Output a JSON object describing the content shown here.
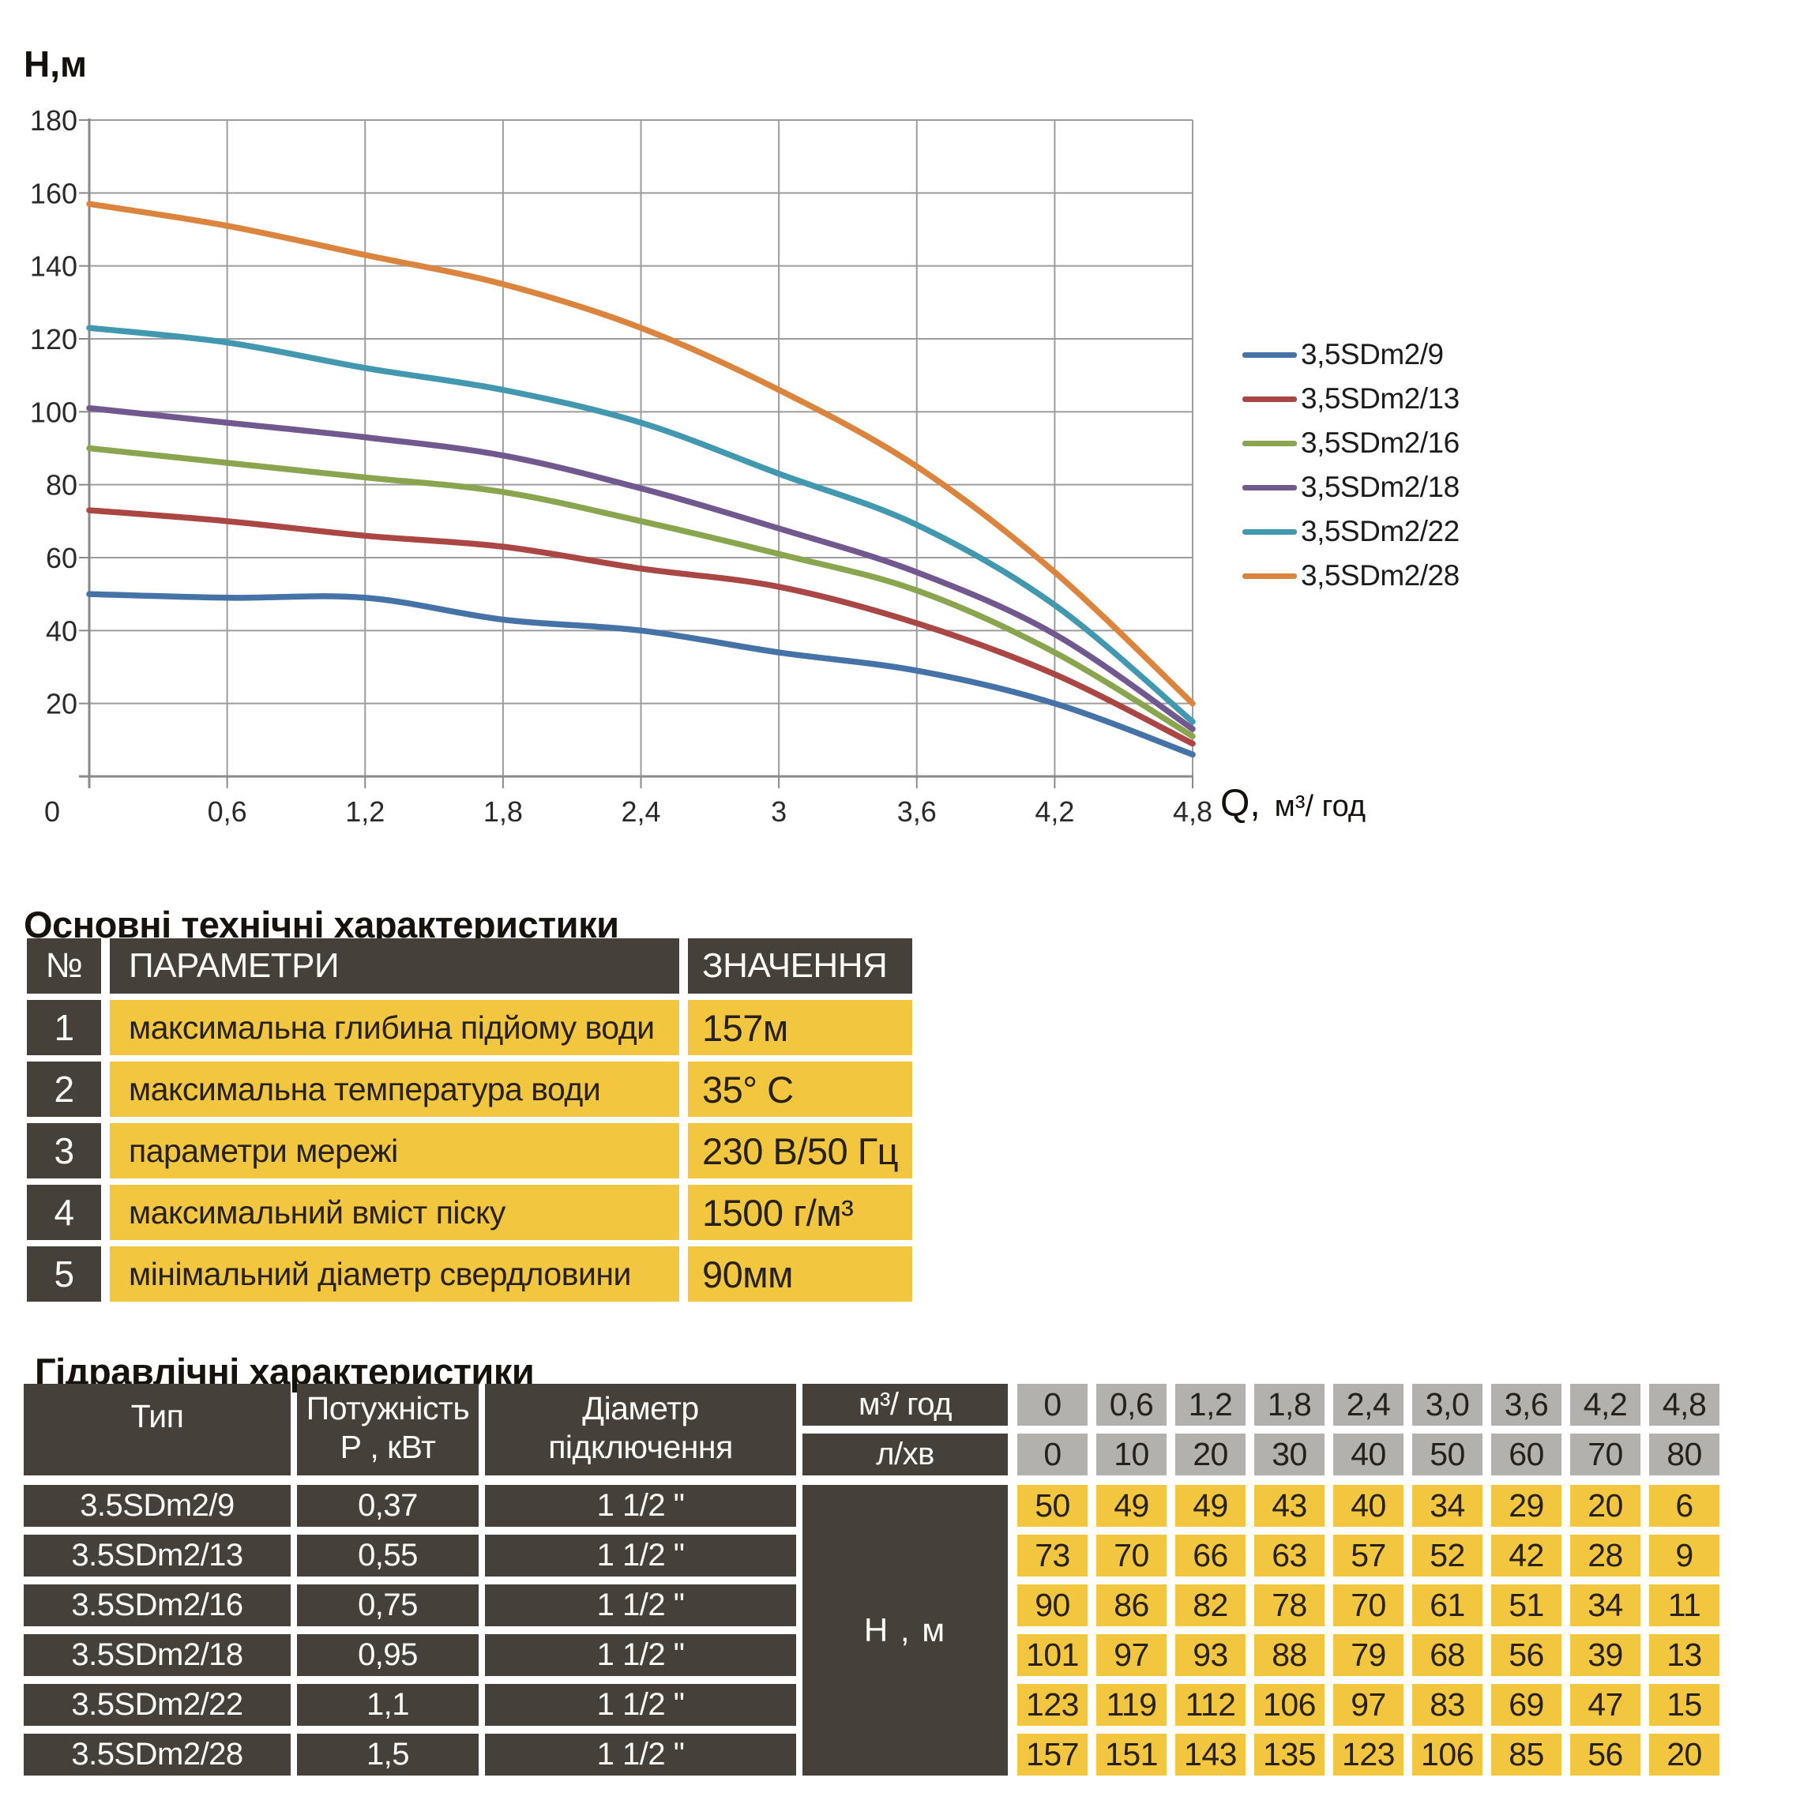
{
  "chart": {
    "y_axis_title": "Н,м",
    "x_axis_title_q": "Q,",
    "x_axis_title_unit": "м³/ год"
  },
  "chart_data": {
    "type": "line",
    "title": "",
    "xlabel": "Q, м³/год",
    "ylabel": "Н, м",
    "xlim": [
      0,
      4.8
    ],
    "ylim": [
      0,
      180
    ],
    "grid": true,
    "legend_position": "right",
    "x": [
      0,
      0.6,
      1.2,
      1.8,
      2.4,
      3.0,
      3.6,
      4.2,
      4.8
    ],
    "x_tick_labels": [
      "0",
      "0,6",
      "1,2",
      "1,8",
      "2,4",
      "3",
      "3,6",
      "4,2",
      "4,8"
    ],
    "y_ticks": [
      0,
      20,
      40,
      60,
      80,
      100,
      120,
      140,
      160,
      180
    ],
    "series": [
      {
        "name": "3,5SDm2/9",
        "color": "#4572A7",
        "values": [
          50,
          49,
          49,
          43,
          40,
          34,
          29,
          20,
          6
        ]
      },
      {
        "name": "3,5SDm2/13",
        "color": "#AA4643",
        "values": [
          73,
          70,
          66,
          63,
          57,
          52,
          42,
          28,
          9
        ]
      },
      {
        "name": "3,5SDm2/16",
        "color": "#89A54E",
        "values": [
          90,
          86,
          82,
          78,
          70,
          61,
          51,
          34,
          11
        ]
      },
      {
        "name": "3,5SDm2/18",
        "color": "#71588F",
        "values": [
          101,
          97,
          93,
          88,
          79,
          68,
          56,
          39,
          13
        ]
      },
      {
        "name": "3,5SDm2/22",
        "color": "#4198AF",
        "values": [
          123,
          119,
          112,
          106,
          97,
          83,
          69,
          47,
          15
        ]
      },
      {
        "name": "3,5SDm2/28",
        "color": "#DB843D",
        "values": [
          157,
          151,
          143,
          135,
          123,
          106,
          85,
          56,
          20
        ]
      }
    ]
  },
  "sections": {
    "main_specs_title": "Основні технічні характеристики",
    "hydraulic_title": "Гідравлічні характеристики"
  },
  "table1": {
    "headers": {
      "num": "№",
      "param": "ПАРАМЕТРИ",
      "value": "ЗНАЧЕННЯ"
    },
    "rows": [
      {
        "num": "1",
        "param": "максимальна глибина підйому води",
        "value": "157м"
      },
      {
        "num": "2",
        "param": "максимальна температура води",
        "value": "35° С"
      },
      {
        "num": "3",
        "param": "параметри мережі",
        "value": "230 В/50 Гц"
      },
      {
        "num": "4",
        "param": "максимальний вміст піску",
        "value": "1500 г/м³"
      },
      {
        "num": "5",
        "param": "мінімальний діаметр свердловини",
        "value": "90мм"
      }
    ]
  },
  "table2": {
    "headers": {
      "type": "Тип",
      "power_line1": "Потужність",
      "power_line2": "Р , кВт",
      "diameter_line1": "Діаметр",
      "diameter_line2": "підключення",
      "flow_m3h": "м³/ год",
      "flow_lmin": "л/хв",
      "head_label": "Н , м"
    },
    "flow_m3h_values": [
      "0",
      "0,6",
      "1,2",
      "1,8",
      "2,4",
      "3,0",
      "3,6",
      "4,2",
      "4,8"
    ],
    "flow_lmin_values": [
      "0",
      "10",
      "20",
      "30",
      "40",
      "50",
      "60",
      "70",
      "80"
    ],
    "rows": [
      {
        "type": "3.5SDm2/9",
        "power": "0,37",
        "diameter": "1 1/2 \"",
        "heads": [
          "50",
          "49",
          "49",
          "43",
          "40",
          "34",
          "29",
          "20",
          "6"
        ]
      },
      {
        "type": "3.5SDm2/13",
        "power": "0,55",
        "diameter": "1 1/2 \"",
        "heads": [
          "73",
          "70",
          "66",
          "63",
          "57",
          "52",
          "42",
          "28",
          "9"
        ]
      },
      {
        "type": "3.5SDm2/16",
        "power": "0,75",
        "diameter": "1 1/2 \"",
        "heads": [
          "90",
          "86",
          "82",
          "78",
          "70",
          "61",
          "51",
          "34",
          "11"
        ]
      },
      {
        "type": "3.5SDm2/18",
        "power": "0,95",
        "diameter": "1 1/2 \"",
        "heads": [
          "101",
          "97",
          "93",
          "88",
          "79",
          "68",
          "56",
          "39",
          "13"
        ]
      },
      {
        "type": "3.5SDm2/22",
        "power": "1,1",
        "diameter": "1 1/2 \"",
        "heads": [
          "123",
          "119",
          "112",
          "106",
          "97",
          "83",
          "69",
          "47",
          "15"
        ]
      },
      {
        "type": "3.5SDm2/28",
        "power": "1,5",
        "diameter": "1 1/2 \"",
        "heads": [
          "157",
          "151",
          "143",
          "135",
          "123",
          "106",
          "85",
          "56",
          "20"
        ]
      }
    ]
  },
  "colors": {
    "cell_dark": "#46403A",
    "cell_yellow": "#F2C63E",
    "cell_gray": "#B3B1AE",
    "text_on_dark": "#FCFBF8",
    "text_on_light": "#26211A",
    "grid_line": "#9C9C9C",
    "axis_line": "#8A8A8A"
  }
}
